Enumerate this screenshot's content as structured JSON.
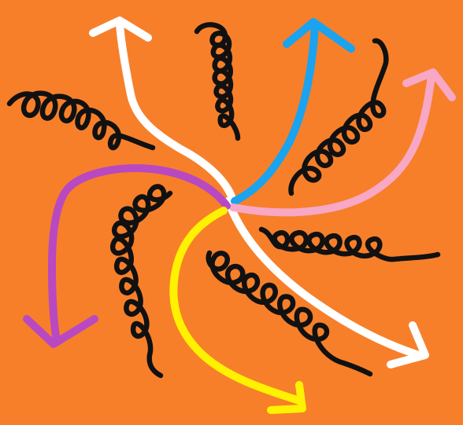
{
  "colors": {
    "background": "#f77f2a",
    "arrow_white": "#ffffff",
    "arrow_blue": "#1aa3ef",
    "arrow_pink": "#f8a8c4",
    "arrow_purple": "#b849c1",
    "arrow_yellow": "#fff200",
    "coil": "#111111"
  },
  "drawing": {
    "type": "hand-drawn doodle",
    "arrow_count": 6,
    "coil_count": 6
  }
}
